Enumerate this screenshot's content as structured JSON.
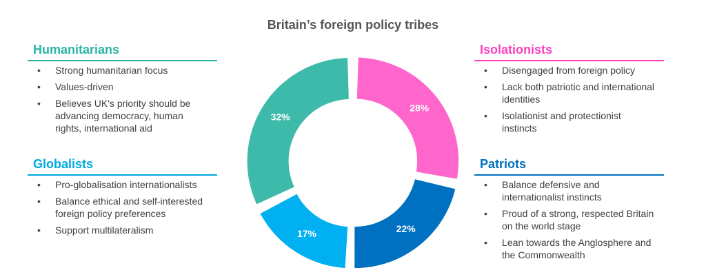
{
  "chart_data": {
    "type": "donut",
    "title": "Britain’s foreign policy tribes",
    "categories": [
      "Isolationists",
      "Patriots",
      "Globalists",
      "Humanitarians"
    ],
    "values": [
      28,
      22,
      17,
      32
    ],
    "value_labels": [
      "28%",
      "22%",
      "17%",
      "32%"
    ],
    "colors": [
      "#ff66cc",
      "#0070c0",
      "#00b0f0",
      "#3dbaa9"
    ],
    "heading_colors": [
      "#ff3fbf",
      "#0070c0",
      "#00a8e0",
      "#2ab5a5"
    ],
    "descriptions": [
      [
        "Disengaged from foreign policy",
        "Lack both patriotic and international identities",
        "Isolationist and protectionist instincts"
      ],
      [
        "Balance defensive and internationalist instincts",
        "Proud of a strong, respected Britain on the world stage",
        "Lean towards the Anglosphere and the Commonwealth"
      ],
      [
        "Pro-globalisation internationalists",
        "Balance ethical and self-interested foreign policy preferences",
        "Support multilateralism"
      ],
      [
        "Strong humanitarian focus",
        "Values-driven",
        "Believes UK's priority should be advancing democracy, human rights, international aid"
      ]
    ]
  }
}
